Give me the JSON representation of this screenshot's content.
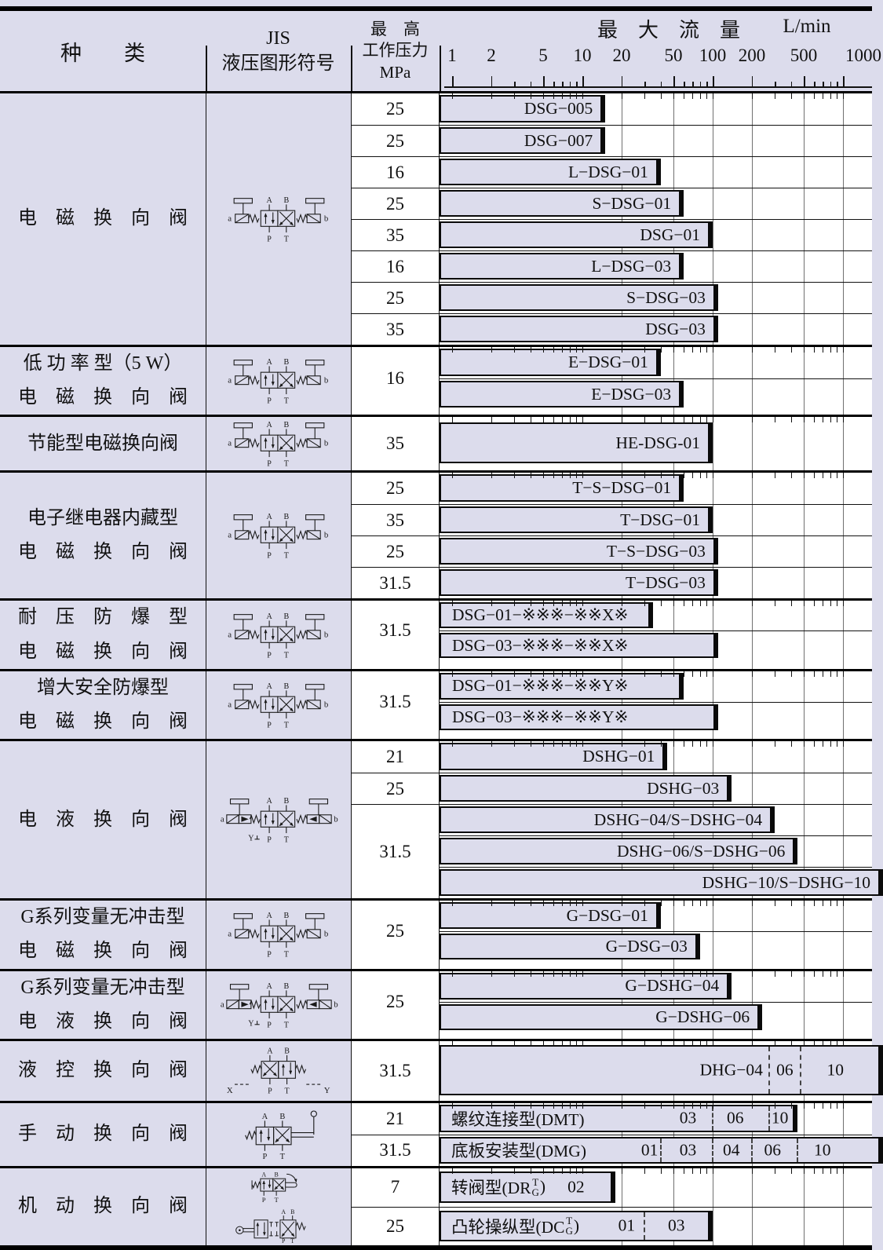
{
  "header": {
    "col_type": "种　　类",
    "col_jis_line1": "JIS",
    "col_jis_line2": "液压图形符号",
    "col_pressure_line1": "最　高",
    "col_pressure_line2": "工作压力",
    "col_pressure_line3": "MPa",
    "flow_title": "最　大　流　量",
    "flow_unit": "L/min",
    "axis_labels": [
      1,
      2,
      5,
      10,
      20,
      50,
      100,
      200,
      500,
      1000
    ]
  },
  "colors": {
    "background": "#dcdcec",
    "bar_fill": "#dcdcec",
    "plot_bg": "#ffffff",
    "line": "#111111",
    "grid": "#707070"
  },
  "symbols": {
    "ports": {
      "A": "A",
      "B": "B",
      "P": "P",
      "T": "T",
      "a": "a",
      "b": "b"
    },
    "pilot_x": "X",
    "pilot_y": "Y",
    "drain": "Y"
  },
  "blocks": [
    {
      "cat": [
        "电　磁　换　向　阀"
      ],
      "sym": "solenoid",
      "pcells": [
        {
          "t": "25",
          "n": 1
        },
        {
          "t": "25",
          "n": 1
        },
        {
          "t": "16",
          "n": 1
        },
        {
          "t": "25",
          "n": 1
        },
        {
          "t": "35",
          "n": 1
        },
        {
          "t": "16",
          "n": 1
        },
        {
          "t": "25",
          "n": 1
        },
        {
          "t": "35",
          "n": 1
        }
      ],
      "rows": [
        {
          "h": 40,
          "bar": {
            "t": "DSG−005",
            "f": 15
          }
        },
        {
          "h": 40,
          "bar": {
            "t": "DSG−007",
            "f": 15
          }
        },
        {
          "h": 40,
          "bar": {
            "t": "L−DSG−01",
            "f": 40
          }
        },
        {
          "h": 40,
          "bar": {
            "t": "S−DSG−01",
            "f": 60
          }
        },
        {
          "h": 40,
          "bar": {
            "t": "DSG−01",
            "f": 100
          }
        },
        {
          "h": 40,
          "bar": {
            "t": "L−DSG−03",
            "f": 60
          }
        },
        {
          "h": 40,
          "bar": {
            "t": "S−DSG−03",
            "f": 110
          }
        },
        {
          "h": 40,
          "bar": {
            "t": "DSG−03",
            "f": 110
          }
        }
      ]
    },
    {
      "cat": [
        "低 功 率 型（5 W）",
        "电　磁　换　向　阀"
      ],
      "sym": "solenoid",
      "pcells": [
        {
          "t": "16",
          "n": 2
        }
      ],
      "rows": [
        {
          "h": 40,
          "bar": {
            "t": "E−DSG−01",
            "f": 40
          }
        },
        {
          "h": 40,
          "bar": {
            "t": "E−DSG−03",
            "f": 60
          }
        }
      ]
    },
    {
      "cat": [
        "节能型电磁换向阀"
      ],
      "sym": "solenoid",
      "pcells": [
        {
          "t": "35",
          "n": 1
        }
      ],
      "rows": [
        {
          "h": 68,
          "pad": [
            7,
            9
          ],
          "bar": {
            "t": "HE-DSG-01",
            "f": 100
          }
        }
      ]
    },
    {
      "cat": [
        "电子继电器内藏型",
        "电　磁　换　向　阀"
      ],
      "sym": "solenoid",
      "pcells": [
        {
          "t": "25",
          "n": 1
        },
        {
          "t": "35",
          "n": 1
        },
        {
          "t": "25",
          "n": 1
        },
        {
          "t": "31.5",
          "n": 1
        }
      ],
      "rows": [
        {
          "h": 40,
          "bar": {
            "t": "T−S−DSG−01",
            "f": 60
          }
        },
        {
          "h": 40,
          "bar": {
            "t": "T−DSG−01",
            "f": 100
          }
        },
        {
          "h": 40,
          "bar": {
            "t": "T−S−DSG−03",
            "f": 110
          }
        },
        {
          "h": 40,
          "bar": {
            "t": "T−DSG−03",
            "f": 110
          }
        }
      ]
    },
    {
      "cat": [
        "耐　压　防　爆　型",
        "电　磁　换　向　阀"
      ],
      "sym": "solenoid",
      "pcells": [
        {
          "t": "31.5",
          "n": 2
        }
      ],
      "rows": [
        {
          "h": 38,
          "bar": {
            "t": "DSG−01−※※※−※※X※",
            "f": 35,
            "a": "l"
          }
        },
        {
          "h": 38,
          "bar": {
            "t": "DSG−03−※※※−※※X※",
            "f": 110,
            "a": "l"
          }
        }
      ]
    },
    {
      "cat": [
        "增大安全防爆型",
        "电　磁　换　向　阀"
      ],
      "sym": "solenoid",
      "pcells": [
        {
          "t": "31.5",
          "n": 2
        }
      ],
      "rows": [
        {
          "h": 39,
          "bar": {
            "t": "DSG−01−※※※−※※Y※",
            "f": 60,
            "a": "l"
          }
        },
        {
          "h": 39,
          "bar": {
            "t": "DSG−03−※※※−※※Y※",
            "f": 110,
            "a": "l"
          }
        }
      ]
    },
    {
      "cat": [
        "电　液　换　向　阀"
      ],
      "sym": "electro",
      "pcells": [
        {
          "t": "21",
          "n": 1
        },
        {
          "t": "25",
          "n": 1
        },
        {
          "t": "31.5",
          "n": 3
        }
      ],
      "rows": [
        {
          "h": 40,
          "bar": {
            "t": "DSHG−01",
            "f": 45
          }
        },
        {
          "h": 40,
          "bar": {
            "t": "DSHG−03",
            "f": 140
          }
        },
        {
          "h": 40,
          "bar": {
            "t": "DSHG−04/S−DSHG−04",
            "f": 300
          }
        },
        {
          "h": 40,
          "bar": {
            "t": "DSHG−06/S−DSHG−06",
            "f": 450
          }
        },
        {
          "h": 40,
          "bar": {
            "t": "DSHG−10/S−DSHG−10",
            "f": 2000,
            "clip": true
          }
        }
      ]
    },
    {
      "cat": [
        "G系列变量无冲击型",
        "电　磁　换　向　阀"
      ],
      "sym": "solenoid",
      "pcells": [
        {
          "t": "25",
          "n": 2
        }
      ],
      "rows": [
        {
          "h": 39,
          "bar": {
            "t": "G−DSG−01",
            "f": 40
          }
        },
        {
          "h": 39,
          "bar": {
            "t": "G−DSG−03",
            "f": 80
          }
        }
      ]
    },
    {
      "cat": [
        "G系列变量无冲击型",
        "电　液　换　向　阀"
      ],
      "sym": "electro",
      "pcells": [
        {
          "t": "25",
          "n": 2
        }
      ],
      "rows": [
        {
          "h": 39,
          "bar": {
            "t": "G−DSHG−04",
            "f": 140
          }
        },
        {
          "h": 39,
          "bar": {
            "t": "G−DSHG−06",
            "f": 240
          }
        }
      ]
    },
    {
      "cat": [
        "液　控　换　向　阀"
      ],
      "sym": "pilot",
      "pcells": [
        {
          "t": "31.5",
          "n": 1
        }
      ],
      "rows": [
        {
          "h": 76,
          "pad": [
            5,
            7
          ],
          "bar": {
            "f": 2000,
            "clip": true,
            "seg": [
              {
                "t": "DHG−04",
                "at": 140,
                "end": 270
              },
              {
                "t": "06",
                "at": 360,
                "end": 470
              },
              {
                "t": "10",
                "at": 880
              }
            ]
          }
        }
      ]
    },
    {
      "cat": [
        "手　动　换　向　阀"
      ],
      "sym": "manual",
      "pcells": [
        {
          "t": "21",
          "n": 1
        },
        {
          "t": "31.5",
          "n": 1
        }
      ],
      "rows": [
        {
          "h": 40,
          "bar": {
            "pre": "螺纹连接型(DMT)",
            "f": 450,
            "seg": [
              {
                "t": "03",
                "at": 65,
                "end": 100
              },
              {
                "t": "06",
                "at": 150,
                "end": 270
              },
              {
                "t": "10",
                "at": 330
              }
            ]
          }
        },
        {
          "h": 40,
          "bar": {
            "pre": "底板安装型(DMG)",
            "f": 2000,
            "clip": true,
            "seg": [
              {
                "t": "01",
                "at": 33,
                "end": 40
              },
              {
                "t": "03",
                "at": 65,
                "end": 100
              },
              {
                "t": "04",
                "at": 140,
                "end": 200
              },
              {
                "t": "06",
                "at": 290,
                "end": 450
              },
              {
                "t": "10",
                "at": 700
              }
            ]
          }
        }
      ]
    },
    {
      "cat": [
        "机　动　换　向　阀"
      ],
      "sym": "mech",
      "pcells": [
        {
          "t": "7",
          "n": 1
        },
        {
          "t": "25",
          "n": 1
        }
      ],
      "rows": [
        {
          "h": 49,
          "pad": [
            4,
            5
          ],
          "bar": {
            "pre": {
              "pre": "转阀型(DR",
              "top": "T",
              "bot": "G",
              "post": ")"
            },
            "f": 18,
            "seg": [
              {
                "t": "02",
                "at": 9
              }
            ]
          }
        },
        {
          "h": 49,
          "pad": [
            4,
            5
          ],
          "bar": {
            "pre": {
              "pre": "凸轮操纵型(DC",
              "top": "T",
              "bot": "G",
              "post": ")"
            },
            "f": 100,
            "seg": [
              {
                "t": "01",
                "at": 22,
                "end": 30
              },
              {
                "t": "03",
                "at": 53
              }
            ]
          }
        }
      ]
    }
  ],
  "chart_data": {
    "type": "bar",
    "orientation": "horizontal",
    "xscale": "log",
    "title": "最大流量 L/min",
    "xticks": [
      1,
      2,
      5,
      10,
      20,
      50,
      100,
      200,
      500,
      1000
    ],
    "xlim": [
      1,
      1700
    ],
    "items": [
      {
        "category": "电磁换向阀",
        "pressure_MPa": 25,
        "model": "DSG-005",
        "max_flow_Lmin": 15
      },
      {
        "category": "电磁换向阀",
        "pressure_MPa": 25,
        "model": "DSG-007",
        "max_flow_Lmin": 15
      },
      {
        "category": "电磁换向阀",
        "pressure_MPa": 16,
        "model": "L-DSG-01",
        "max_flow_Lmin": 40
      },
      {
        "category": "电磁换向阀",
        "pressure_MPa": 25,
        "model": "S-DSG-01",
        "max_flow_Lmin": 60
      },
      {
        "category": "电磁换向阀",
        "pressure_MPa": 35,
        "model": "DSG-01",
        "max_flow_Lmin": 100
      },
      {
        "category": "电磁换向阀",
        "pressure_MPa": 16,
        "model": "L-DSG-03",
        "max_flow_Lmin": 60
      },
      {
        "category": "电磁换向阀",
        "pressure_MPa": 25,
        "model": "S-DSG-03",
        "max_flow_Lmin": 110
      },
      {
        "category": "电磁换向阀",
        "pressure_MPa": 35,
        "model": "DSG-03",
        "max_flow_Lmin": 110
      },
      {
        "category": "低功率型（5 W）电磁换向阀",
        "pressure_MPa": 16,
        "model": "E-DSG-01",
        "max_flow_Lmin": 40
      },
      {
        "category": "低功率型（5 W）电磁换向阀",
        "pressure_MPa": 16,
        "model": "E-DSG-03",
        "max_flow_Lmin": 60
      },
      {
        "category": "节能型电磁换向阀",
        "pressure_MPa": 35,
        "model": "HE-DSG-01",
        "max_flow_Lmin": 100
      },
      {
        "category": "电子继电器内藏型电磁换向阀",
        "pressure_MPa": 25,
        "model": "T-S-DSG-01",
        "max_flow_Lmin": 60
      },
      {
        "category": "电子继电器内藏型电磁换向阀",
        "pressure_MPa": 35,
        "model": "T-DSG-01",
        "max_flow_Lmin": 100
      },
      {
        "category": "电子继电器内藏型电磁换向阀",
        "pressure_MPa": 25,
        "model": "T-S-DSG-03",
        "max_flow_Lmin": 110
      },
      {
        "category": "电子继电器内藏型电磁换向阀",
        "pressure_MPa": 31.5,
        "model": "T-DSG-03",
        "max_flow_Lmin": 110
      },
      {
        "category": "耐压防爆型电磁换向阀",
        "pressure_MPa": 31.5,
        "model": "DSG-01-※※※-※※X※",
        "max_flow_Lmin": 35
      },
      {
        "category": "耐压防爆型电磁换向阀",
        "pressure_MPa": 31.5,
        "model": "DSG-03-※※※-※※X※",
        "max_flow_Lmin": 110
      },
      {
        "category": "增大安全防爆型电磁换向阀",
        "pressure_MPa": 31.5,
        "model": "DSG-01-※※※-※※Y※",
        "max_flow_Lmin": 60
      },
      {
        "category": "增大安全防爆型电磁换向阀",
        "pressure_MPa": 31.5,
        "model": "DSG-03-※※※-※※Y※",
        "max_flow_Lmin": 110
      },
      {
        "category": "电液换向阀",
        "pressure_MPa": 21,
        "model": "DSHG-01",
        "max_flow_Lmin": 45
      },
      {
        "category": "电液换向阀",
        "pressure_MPa": 25,
        "model": "DSHG-03",
        "max_flow_Lmin": 140
      },
      {
        "category": "电液换向阀",
        "pressure_MPa": 31.5,
        "model": "DSHG-04/S-DSHG-04",
        "max_flow_Lmin": 300
      },
      {
        "category": "电液换向阀",
        "pressure_MPa": 31.5,
        "model": "DSHG-06/S-DSHG-06",
        "max_flow_Lmin": 450
      },
      {
        "category": "电液换向阀",
        "pressure_MPa": 31.5,
        "model": "DSHG-10/S-DSHG-10",
        "max_flow_Lmin": ">1000"
      },
      {
        "category": "G系列变量无冲击型电磁换向阀",
        "pressure_MPa": 25,
        "model": "G-DSG-01",
        "max_flow_Lmin": 40
      },
      {
        "category": "G系列变量无冲击型电磁换向阀",
        "pressure_MPa": 25,
        "model": "G-DSG-03",
        "max_flow_Lmin": 80
      },
      {
        "category": "G系列变量无冲击型电液换向阀",
        "pressure_MPa": 25,
        "model": "G-DSHG-04",
        "max_flow_Lmin": 140
      },
      {
        "category": "G系列变量无冲击型电液换向阀",
        "pressure_MPa": 25,
        "model": "G-DSHG-06",
        "max_flow_Lmin": 240
      },
      {
        "category": "液控换向阀",
        "pressure_MPa": 31.5,
        "model": "DHG",
        "sizes": [
          "04",
          "06",
          "10"
        ],
        "max_flow_Lmin": ">1000"
      },
      {
        "category": "手动换向阀",
        "pressure_MPa": 21,
        "model": "螺纹连接型(DMT)",
        "sizes": [
          "03",
          "06",
          "10"
        ],
        "max_flow_Lmin": 450
      },
      {
        "category": "手动换向阀",
        "pressure_MPa": 31.5,
        "model": "底板安装型(DMG)",
        "sizes": [
          "01",
          "03",
          "04",
          "06",
          "10"
        ],
        "max_flow_Lmin": ">1000"
      },
      {
        "category": "机动换向阀",
        "pressure_MPa": 7,
        "model": "转阀型(DR T/G)",
        "sizes": [
          "02"
        ],
        "max_flow_Lmin": 18
      },
      {
        "category": "机动换向阀",
        "pressure_MPa": 25,
        "model": "凸轮操纵型(DC T/G)",
        "sizes": [
          "01",
          "03"
        ],
        "max_flow_Lmin": 100
      }
    ]
  }
}
